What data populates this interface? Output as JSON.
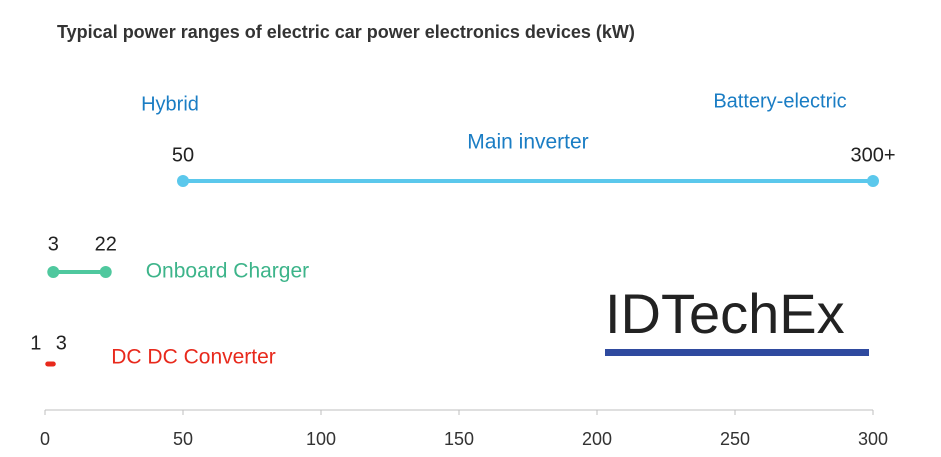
{
  "chart_data": {
    "type": "range",
    "title": "Typical power ranges of electric car power electronics devices (kW)",
    "annotations": [
      "Hybrid",
      "Battery-electric"
    ],
    "annotation_color": "#1a7dc4",
    "xlim": [
      0,
      300
    ],
    "xticks": [
      0,
      50,
      100,
      150,
      200,
      250,
      300
    ],
    "series": [
      {
        "name": "Main inverter",
        "color": "#5bc8ec",
        "name_color": "#1a7dc4",
        "marker": true,
        "values": [
          50,
          300
        ],
        "value_labels": [
          "50",
          "300+"
        ]
      },
      {
        "name": "Onboard Charger",
        "color": "#4fc89e",
        "name_color": "#3db48a",
        "marker": true,
        "values": [
          3,
          22
        ]
      },
      {
        "name": "DC DC Converter",
        "color": "#e8291c",
        "name_color": "#e8291c",
        "marker": false,
        "values": [
          1,
          3
        ]
      }
    ]
  },
  "logo": "IDTechEx"
}
